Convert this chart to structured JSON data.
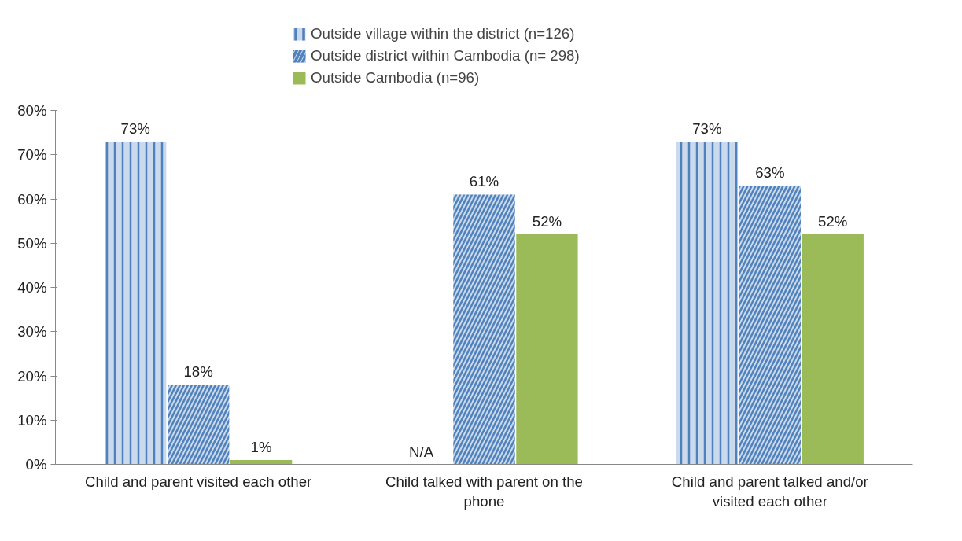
{
  "chart_data": {
    "type": "bar",
    "categories": [
      "Child and parent visited each other",
      "Child talked with parent on the phone",
      "Child and parent talked and/or visited each other"
    ],
    "series": [
      {
        "name": "Outside village within the district (n=126)",
        "color": "#4f81bd",
        "values": [
          73,
          null,
          73
        ],
        "value_labels": [
          "73%",
          "N/A",
          "73%"
        ]
      },
      {
        "name": "Outside district within Cambodia (n= 298)",
        "color": "#4f81bd",
        "values": [
          18,
          61,
          63
        ],
        "value_labels": [
          "18%",
          "61%",
          "63%"
        ]
      },
      {
        "name": "Outside Cambodia (n=96)",
        "color": "#9bbb59",
        "values": [
          1,
          52,
          52
        ],
        "value_labels": [
          "1%",
          "52%",
          "52%"
        ]
      }
    ],
    "ylim": [
      0,
      80
    ],
    "yticks": [
      {
        "value": 0,
        "label": "0%"
      },
      {
        "value": 10,
        "label": "10%"
      },
      {
        "value": 20,
        "label": "20%"
      },
      {
        "value": 30,
        "label": "30%"
      },
      {
        "value": 40,
        "label": "40%"
      },
      {
        "value": 50,
        "label": "50%"
      },
      {
        "value": 60,
        "label": "60%"
      },
      {
        "value": 70,
        "label": "70%"
      },
      {
        "value": 80,
        "label": "80%"
      }
    ],
    "grid": false,
    "legend": "top"
  }
}
